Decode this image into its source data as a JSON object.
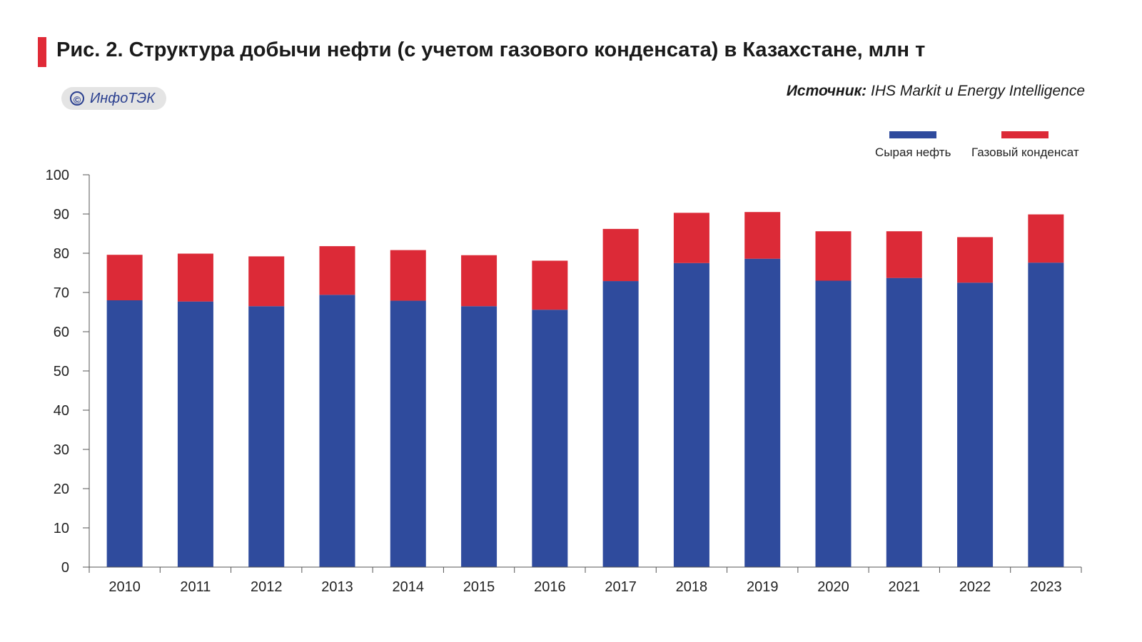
{
  "header": {
    "title": "Рис. 2. Структура добычи нефти (с учетом газового конденсата) в Казахстане, млн т",
    "brand_text": "ИнфоТЭК",
    "brand_symbol": "©",
    "source_label": "Источник:",
    "source_text": "IHS Markit и Energy Intelligence"
  },
  "colors": {
    "accent": "#e02a37",
    "crude": "#2f4b9d",
    "condensate": "#dc2a37"
  },
  "chart_data": {
    "type": "bar",
    "stacked": true,
    "title": "Рис. 2. Структура добычи нефти (с учетом газового конденсата) в Казахстане, млн т",
    "xlabel": "",
    "ylabel": "",
    "ylim": [
      0,
      100
    ],
    "yticks": [
      0,
      10,
      20,
      30,
      40,
      50,
      60,
      70,
      80,
      90,
      100
    ],
    "categories": [
      "2010",
      "2011",
      "2012",
      "2013",
      "2014",
      "2015",
      "2016",
      "2017",
      "2018",
      "2019",
      "2020",
      "2021",
      "2022",
      "2023"
    ],
    "series": [
      {
        "name": "Сырая нефть",
        "color": "#2f4b9d",
        "values": [
          68.0,
          67.7,
          66.5,
          69.4,
          67.9,
          66.5,
          65.6,
          72.9,
          77.5,
          78.6,
          73.0,
          73.7,
          72.5,
          77.6
        ]
      },
      {
        "name": "Газовый конденсат",
        "color": "#dc2a37",
        "values": [
          11.6,
          12.2,
          12.7,
          12.4,
          12.9,
          13.0,
          12.5,
          13.3,
          12.8,
          11.9,
          12.6,
          11.9,
          11.6,
          12.3
        ]
      }
    ],
    "legend_position": "top-right",
    "grid": false
  }
}
